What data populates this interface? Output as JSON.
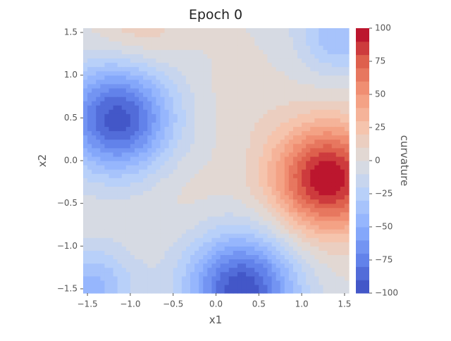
{
  "chart_data": {
    "type": "heatmap",
    "title": "Epoch 0",
    "xlabel": "x1",
    "ylabel": "x2",
    "colorbar_label": "curvature",
    "colormap": "coolwarm",
    "xlim": [
      -1.55,
      1.55
    ],
    "ylim": [
      -1.55,
      1.55
    ],
    "x_ticks": [
      -1.5,
      -1.0,
      -0.5,
      0.0,
      0.5,
      1.0,
      1.5
    ],
    "x_tick_labels": [
      "−1.5",
      "−1.0",
      "−0.5",
      "0.0",
      "0.5",
      "1.0",
      "1.5"
    ],
    "y_ticks": [
      -1.5,
      -1.0,
      -0.5,
      0.0,
      0.5,
      1.0,
      1.5
    ],
    "y_tick_labels": [
      "−1.5",
      "−1.0",
      "−0.5",
      "0.0",
      "0.5",
      "1.0",
      "1.5"
    ],
    "color_range": [
      -100,
      100
    ],
    "color_levels": 20,
    "colorbar_ticks": [
      -100,
      -75,
      -50,
      -25,
      0,
      25,
      50,
      75,
      100
    ],
    "colorbar_tick_labels": [
      "−100",
      "−75",
      "−50",
      "−25",
      "0",
      "25",
      "50",
      "75",
      "100"
    ],
    "grid": false,
    "features": [
      {
        "kind": "min",
        "x": -1.15,
        "y": 0.5,
        "value": -95
      },
      {
        "kind": "max",
        "x": 1.3,
        "y": -0.2,
        "value": 100
      },
      {
        "kind": "min",
        "x": 0.3,
        "y": -1.5,
        "value": -98
      },
      {
        "kind": "min",
        "x": 1.45,
        "y": 1.5,
        "value": -40
      },
      {
        "kind": "min",
        "x": -1.45,
        "y": -1.5,
        "value": -45
      },
      {
        "kind": "max",
        "x": -0.9,
        "y": 1.6,
        "value": 20
      },
      {
        "kind": "max",
        "x": 0.3,
        "y": 0.7,
        "value": 5
      },
      {
        "kind": "max",
        "x": -0.35,
        "y": -0.35,
        "value": 5
      }
    ]
  },
  "colors": {
    "low": "#3b4cc0",
    "mid": "#dddddd",
    "high": "#b40426",
    "axis_text": "#555555",
    "title_text": "#222222",
    "tick": "#555555"
  }
}
